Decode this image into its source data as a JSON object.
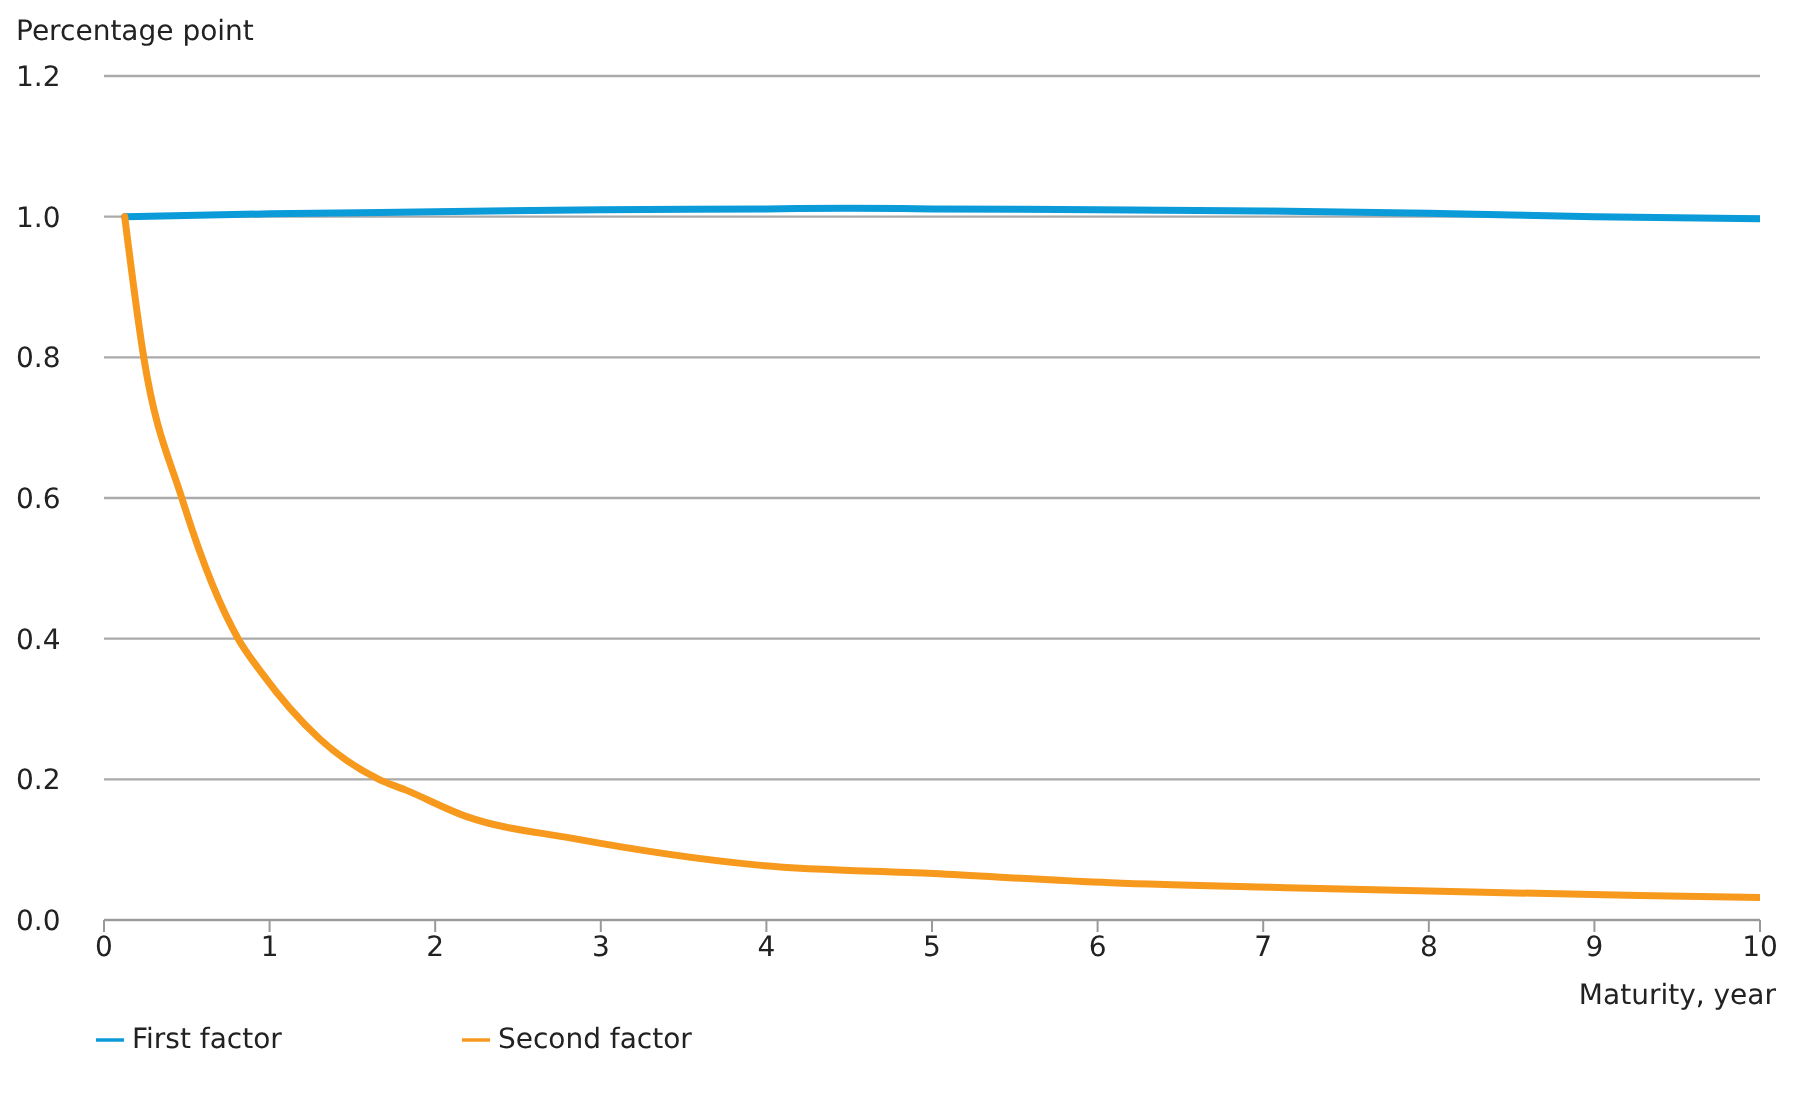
{
  "chart_data": {
    "type": "line",
    "ylabel": "Percentage point",
    "xlabel": "Maturity, year",
    "xlim": [
      0,
      10
    ],
    "xticks": [
      0,
      1,
      2,
      3,
      4,
      5,
      6,
      7,
      8,
      9,
      10
    ],
    "ylim": [
      0,
      1.2
    ],
    "yticks": [
      {
        "value": 0,
        "label": "0.0"
      },
      0.2,
      0.4,
      0.6,
      0.8,
      {
        "value": 1,
        "label": "1.0"
      },
      1.2
    ],
    "grid": "y",
    "legend": "bottom left",
    "marker": "none",
    "line_style": "solid",
    "series": [
      {
        "name": "First factor",
        "color": "#0a9bd8",
        "x": [
          0.125,
          1,
          2,
          3,
          4,
          4.5,
          5,
          6,
          7,
          8,
          9,
          10
        ],
        "values": [
          1.0,
          1.004,
          1.007,
          1.01,
          1.011,
          1.012,
          1.011,
          1.01,
          1.008,
          1.005,
          1.0,
          0.997
        ]
      },
      {
        "name": "Second factor",
        "color": "#f7991d",
        "x": [
          0.125,
          0.24,
          0.47,
          0.81,
          0.95,
          1.3,
          1.66,
          1.82,
          2.19,
          2.83,
          3.95,
          5.01,
          6.08,
          7.14,
          8.2,
          9.27,
          10
        ],
        "values": [
          1.0,
          0.8,
          0.6,
          0.4,
          0.352,
          0.258,
          0.2,
          0.185,
          0.147,
          0.116,
          0.078,
          0.066,
          0.053,
          0.046,
          0.04,
          0.035,
          0.032
        ]
      }
    ]
  }
}
